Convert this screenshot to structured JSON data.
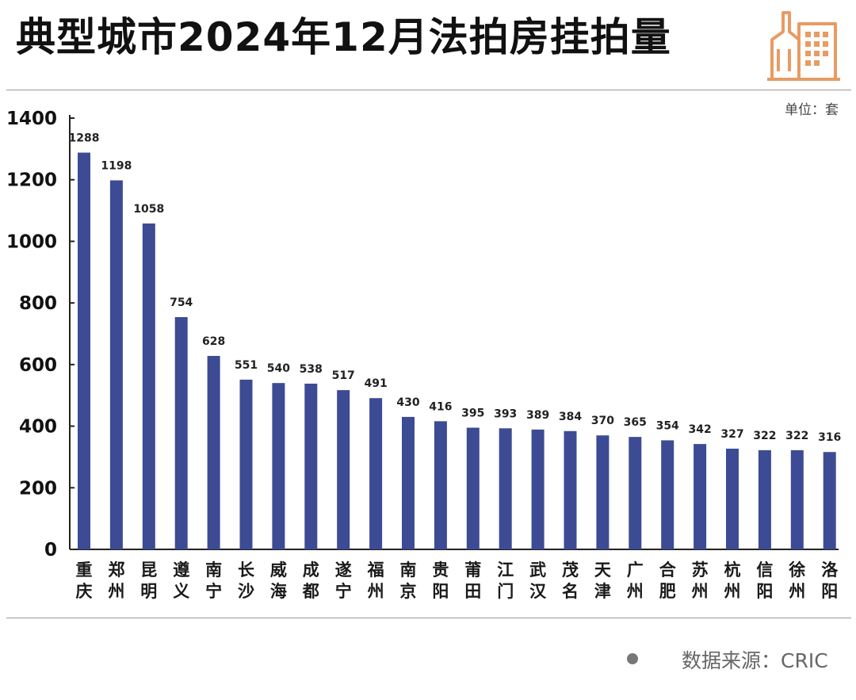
{
  "title": "典型城市2024年12月法拍房挂拍量",
  "unit": "单位：套",
  "source": "数据来源：CRIC",
  "header_icon": "city-buildings-icon",
  "colors": {
    "bar": "#3c4b93",
    "axis": "#222222",
    "icon": "#e89b63"
  },
  "chart_data": {
    "type": "bar",
    "title": "典型城市2024年12月法拍房挂拍量",
    "xlabel": "",
    "ylabel": "",
    "ylim": [
      0,
      1400
    ],
    "yticks": [
      0,
      200,
      400,
      600,
      800,
      1000,
      1200,
      1400
    ],
    "grid": false,
    "legend": "none",
    "categories": [
      "重庆",
      "郑州",
      "昆明",
      "遵义",
      "南宁",
      "长沙",
      "威海",
      "成都",
      "遂宁",
      "福州",
      "南京",
      "贵阳",
      "莆田",
      "江门",
      "武汉",
      "茂名",
      "天津",
      "广州",
      "合肥",
      "苏州",
      "杭州",
      "信阳",
      "徐州",
      "洛阳"
    ],
    "values": [
      1288,
      1198,
      1058,
      754,
      628,
      551,
      540,
      538,
      517,
      491,
      430,
      416,
      395,
      393,
      389,
      384,
      370,
      365,
      354,
      342,
      327,
      322,
      322,
      316
    ]
  }
}
